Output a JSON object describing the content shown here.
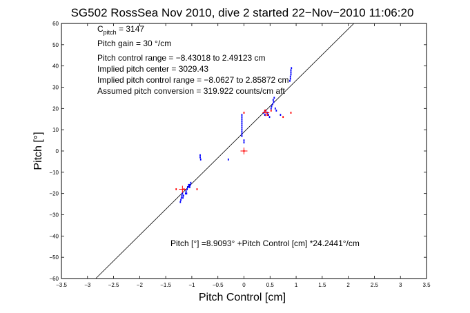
{
  "chart_data": {
    "type": "scatter",
    "title": "SG502 RossSea Nov 2010, dive 2 started 22−Nov−2010 11:06:20",
    "xlabel": "Pitch Control [cm]",
    "ylabel": "Pitch [°]",
    "xlim": [
      -3.5,
      3.5
    ],
    "ylim": [
      -60,
      60
    ],
    "xticks": [
      -3.5,
      -3,
      -2.5,
      -2,
      -1.5,
      -1,
      -0.5,
      0,
      0.5,
      1,
      1.5,
      2,
      2.5,
      3,
      3.5
    ],
    "xtick_labels": [
      "−3.5",
      "−3",
      "−2.5",
      "−2",
      "−1.5",
      "−1",
      "−0.5",
      "0",
      "0.5",
      "1",
      "1.5",
      "2",
      "2.5",
      "3",
      "3.5"
    ],
    "yticks": [
      -60,
      -50,
      -40,
      -30,
      -20,
      -10,
      0,
      10,
      20,
      30,
      40,
      50,
      60
    ],
    "ytick_labels": [
      "−60",
      "−50",
      "−40",
      "−30",
      "−20",
      "−10",
      "0",
      "10",
      "20",
      "30",
      "40",
      "50",
      "60"
    ],
    "grid": false,
    "annotations": {
      "c_pitch_main": "C",
      "c_pitch_sub": "pitch",
      "c_pitch_value": " = 3147",
      "lines": [
        "Pitch gain = 30 °/cm",
        "Pitch control range = −8.43018 to 2.49123 cm",
        "Implied pitch center = 3029.43",
        "Implied pitch control range = −8.0627 to 2.85872 cm",
        "Assumed pitch conversion = 319.922 counts/cm aft"
      ],
      "fit_text": "Pitch [°] =8.9093° +Pitch Control [cm] *24.2441°/cm"
    },
    "fit_line": {
      "intercept": 8.9093,
      "slope": 24.2441
    },
    "series": [
      {
        "color": "#0000ff",
        "points": [
          [
            -1.22,
            -24
          ],
          [
            -1.21,
            -23
          ],
          [
            -1.2,
            -22
          ],
          [
            -1.19,
            -21
          ],
          [
            -1.18,
            -20
          ],
          [
            -1.17,
            -22
          ],
          [
            -1.16,
            -21
          ],
          [
            -1.12,
            -20
          ],
          [
            -1.11,
            -19
          ],
          [
            -1.1,
            -20
          ],
          [
            -1.09,
            -18
          ],
          [
            -1.08,
            -17
          ],
          [
            -1.07,
            -17
          ],
          [
            -1.06,
            -16
          ],
          [
            -1.05,
            -16
          ],
          [
            -1.04,
            -17
          ],
          [
            -1.03,
            -16
          ],
          [
            -1.02,
            -15
          ],
          [
            -0.84,
            -2
          ],
          [
            -0.84,
            -3
          ],
          [
            -0.83,
            -4
          ],
          [
            -0.3,
            -4
          ],
          [
            -0.04,
            7
          ],
          [
            -0.04,
            8
          ],
          [
            -0.04,
            9
          ],
          [
            -0.04,
            10
          ],
          [
            -0.04,
            11
          ],
          [
            -0.04,
            12
          ],
          [
            -0.04,
            13
          ],
          [
            -0.04,
            14
          ],
          [
            -0.04,
            15
          ],
          [
            -0.04,
            16
          ],
          [
            -0.04,
            17
          ],
          [
            0.0,
            4
          ],
          [
            0.0,
            5
          ],
          [
            0.38,
            18
          ],
          [
            0.4,
            17
          ],
          [
            0.42,
            19
          ],
          [
            0.45,
            18
          ],
          [
            0.47,
            17
          ],
          [
            0.49,
            16
          ],
          [
            0.52,
            20
          ],
          [
            0.53,
            21
          ],
          [
            0.55,
            22
          ],
          [
            0.56,
            24
          ],
          [
            0.57,
            23
          ],
          [
            0.58,
            25
          ],
          [
            0.6,
            20
          ],
          [
            0.62,
            19
          ],
          [
            0.7,
            17
          ],
          [
            0.88,
            33
          ],
          [
            0.89,
            34
          ],
          [
            0.89,
            35
          ],
          [
            0.9,
            36
          ],
          [
            0.9,
            37
          ],
          [
            0.9,
            38
          ],
          [
            0.91,
            39
          ]
        ]
      },
      {
        "color": "#ff0000",
        "points": [
          [
            -1.3,
            -18
          ],
          [
            -1.15,
            -18
          ],
          [
            -0.9,
            -18
          ],
          [
            0.0,
            0
          ],
          [
            0.0,
            18
          ],
          [
            0.4,
            19
          ],
          [
            0.45,
            17
          ],
          [
            0.52,
            19
          ],
          [
            0.75,
            16
          ],
          [
            0.9,
            18
          ]
        ]
      }
    ],
    "markers": [
      {
        "label": "+",
        "x": -1.18,
        "y": -18,
        "color": "#ff0000"
      },
      {
        "label": "+",
        "x": 0.0,
        "y": 0,
        "color": "#ff0000"
      },
      {
        "label": "+",
        "x": 0.42,
        "y": 18,
        "color": "#ff0000"
      }
    ]
  }
}
